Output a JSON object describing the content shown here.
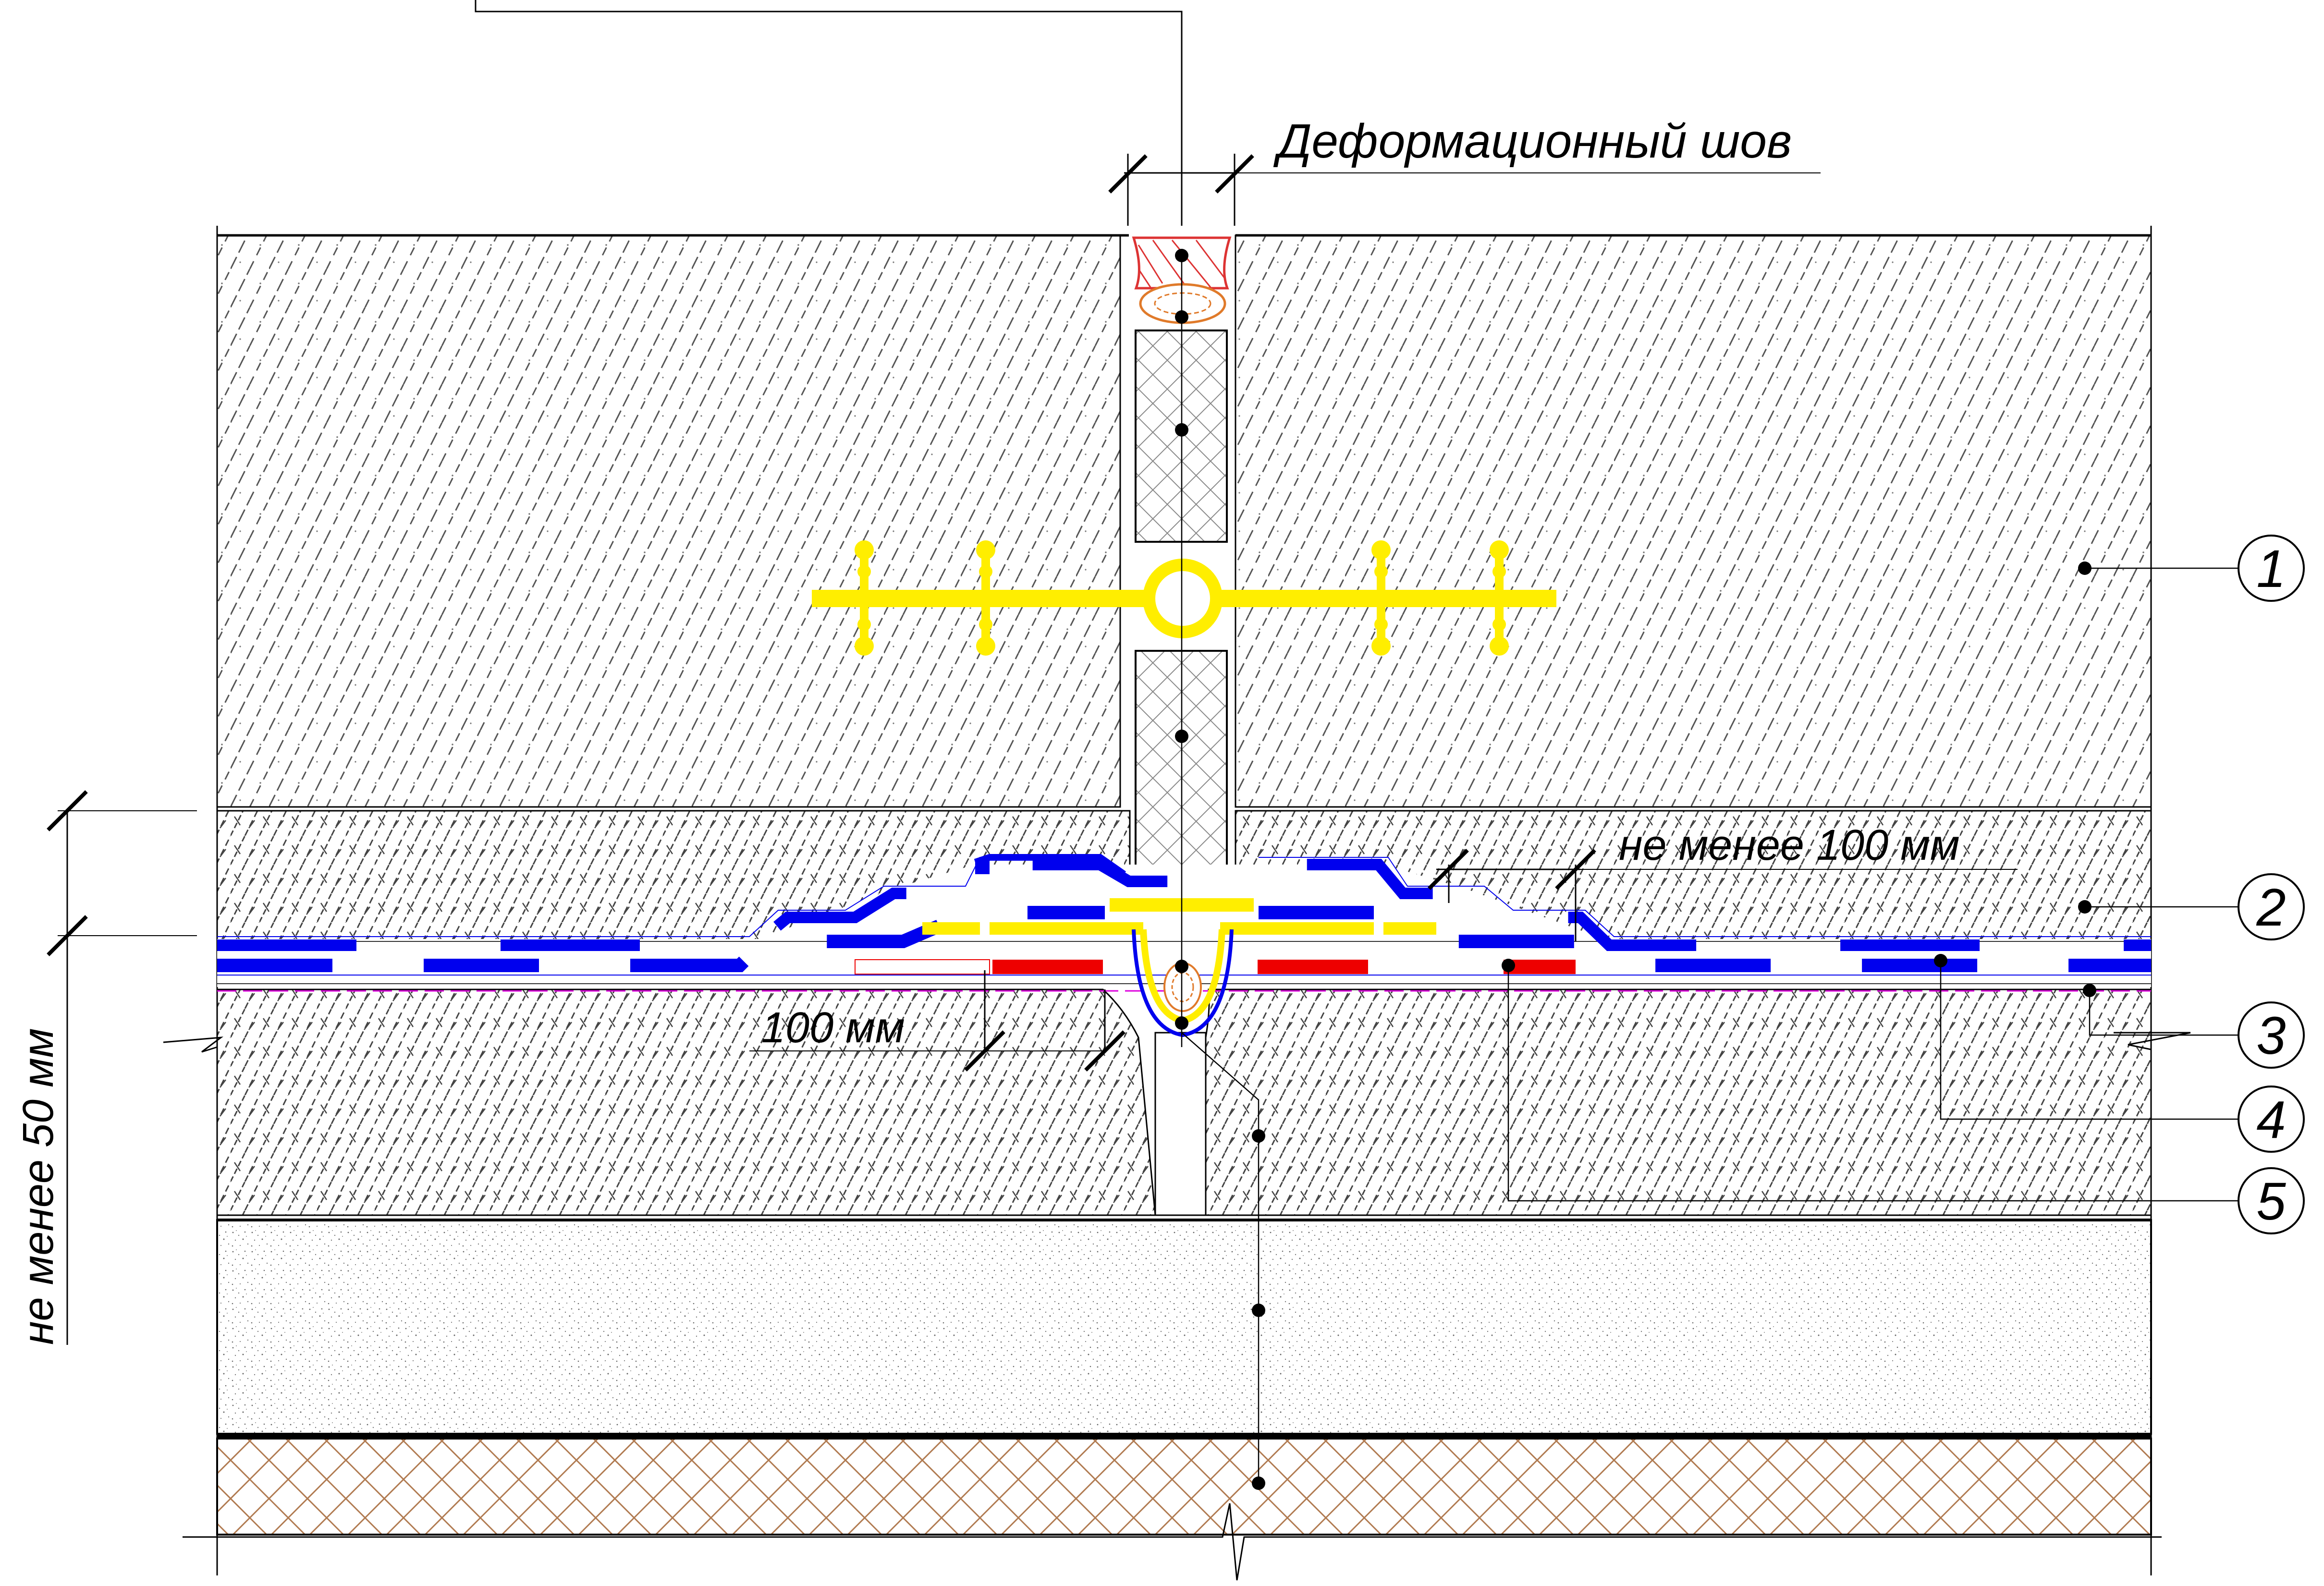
{
  "annotations": {
    "joint": "Деформационный шов",
    "min_100": "не менее 100 мм",
    "len_100": "100 мм",
    "min_50": "не менее 50 мм"
  },
  "callouts": [
    "1",
    "2",
    "3",
    "4",
    "5"
  ],
  "colors": {
    "waterstop": "#ffee00",
    "membrane": "#0000ee",
    "tape": "#ee0000",
    "sealant": "#dd3333",
    "cord": "#e07a2a",
    "hatch": "#444444",
    "soil": "#b07a50"
  }
}
